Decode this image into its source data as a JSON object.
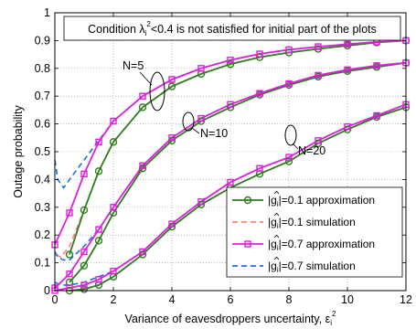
{
  "chart_data": {
    "type": "line",
    "annotation": "Condition λᵢ²<0.4 is not satisfied for initial part of the plots",
    "annotation_parts": {
      "pre": "Condition λ",
      "sub": "i",
      "sup": "2",
      "post": "<0.4 is not satisfied for initial part of the plots"
    },
    "xlabel": "Variance of eavesdroppers uncertainty, εᵢ²",
    "xlabel_parts": {
      "pre": "Variance of eavesdroppers uncertainty, ε",
      "sub": "i",
      "sup": "2"
    },
    "ylabel": "Outage probability",
    "xlim": [
      0,
      12
    ],
    "ylim": [
      0,
      1
    ],
    "xticks": [
      0,
      2,
      4,
      6,
      8,
      10,
      12
    ],
    "yticks": [
      0,
      0.1,
      0.2,
      0.3,
      0.4,
      0.5,
      0.6,
      0.7,
      0.8,
      0.9,
      1
    ],
    "grid": true,
    "legend_position": "bottom-right",
    "group_labels": [
      "N=5",
      "N=10",
      "N=20"
    ],
    "colors": {
      "g01_approx": "#2e7d1f",
      "g01_sim": "#ff8080",
      "g07_approx": "#e01ee0",
      "g07_sim": "#1f6fe0"
    },
    "series": [
      {
        "name": "|ĝᵢ|=0.1 approximation",
        "legend_pre": "|",
        "legend_hat": "g",
        "legend_sub": "i",
        "legend_post": "|=0.1 approximation",
        "group": "N=5",
        "color_key": "g01_approx",
        "style": "solid",
        "marker": "circle",
        "x": [
          0.5,
          1,
          1.5,
          2,
          3,
          4,
          5,
          6,
          7,
          8,
          9,
          10,
          11,
          12
        ],
        "y": [
          0.13,
          0.29,
          0.43,
          0.535,
          0.66,
          0.735,
          0.78,
          0.815,
          0.84,
          0.857,
          0.87,
          0.882,
          0.893,
          0.9
        ]
      },
      {
        "name": "|ĝᵢ|=0.1 simulation",
        "legend_pre": "|",
        "legend_hat": "g",
        "legend_sub": "i",
        "legend_post": "|=0.1 simulation",
        "group": "N=5",
        "color_key": "g01_sim",
        "style": "dashed",
        "marker": "none",
        "x": [
          0.05,
          0.2,
          0.5,
          1,
          1.5,
          2,
          3,
          4,
          5,
          6,
          7,
          8,
          9,
          10,
          11,
          12
        ],
        "y": [
          0.13,
          0.12,
          0.16,
          0.29,
          0.43,
          0.535,
          0.66,
          0.735,
          0.78,
          0.815,
          0.84,
          0.857,
          0.87,
          0.882,
          0.893,
          0.9
        ]
      },
      {
        "name": "|ĝᵢ|=0.7 approximation",
        "legend_pre": "|",
        "legend_hat": "g",
        "legend_sub": "i",
        "legend_post": "|=0.7 approximation",
        "group": "N=5",
        "color_key": "g07_approx",
        "style": "solid",
        "marker": "square",
        "x": [
          0,
          0.5,
          1,
          1.5,
          2,
          3,
          4,
          5,
          6,
          7,
          8,
          9,
          10,
          11,
          12
        ],
        "y": [
          0.165,
          0.28,
          0.42,
          0.535,
          0.61,
          0.7,
          0.76,
          0.8,
          0.83,
          0.852,
          0.867,
          0.878,
          0.887,
          0.895,
          0.9
        ]
      },
      {
        "name": "|ĝᵢ|=0.7 simulation",
        "legend_pre": "|",
        "legend_hat": "g",
        "legend_sub": "i",
        "legend_post": "|=0.7 simulation",
        "group": "N=5",
        "color_key": "g07_sim",
        "style": "dashed",
        "marker": "none",
        "x": [
          0,
          0.1,
          0.3,
          0.5,
          1,
          1.5,
          2,
          3,
          4,
          5,
          6,
          7,
          8,
          9,
          10,
          11,
          12
        ],
        "y": [
          0.47,
          0.4,
          0.37,
          0.4,
          0.47,
          0.54,
          0.61,
          0.7,
          0.76,
          0.8,
          0.83,
          0.852,
          0.867,
          0.878,
          0.887,
          0.895,
          0.9
        ]
      },
      {
        "name": "|ĝᵢ|=0.1 approximation",
        "group": "N=10",
        "color_key": "g01_approx",
        "style": "solid",
        "marker": "circle",
        "legend": false,
        "x": [
          0.5,
          1,
          1.5,
          2,
          3,
          4,
          5,
          6,
          7,
          8,
          9,
          10,
          11,
          12
        ],
        "y": [
          0.03,
          0.09,
          0.18,
          0.28,
          0.44,
          0.54,
          0.61,
          0.66,
          0.705,
          0.74,
          0.77,
          0.79,
          0.805,
          0.82
        ]
      },
      {
        "name": "|ĝᵢ|=0.1 simulation",
        "group": "N=10",
        "color_key": "g01_sim",
        "style": "dashed",
        "marker": "none",
        "legend": false,
        "x": [
          0.5,
          1,
          1.5,
          2,
          3,
          4,
          5,
          6,
          7,
          8,
          9,
          10,
          11,
          12
        ],
        "y": [
          0.03,
          0.09,
          0.18,
          0.28,
          0.44,
          0.54,
          0.61,
          0.66,
          0.705,
          0.74,
          0.77,
          0.79,
          0.805,
          0.82
        ]
      },
      {
        "name": "|ĝᵢ|=0.7 approximation",
        "group": "N=10",
        "color_key": "g07_approx",
        "style": "solid",
        "marker": "square",
        "legend": false,
        "x": [
          0,
          0.5,
          1,
          1.5,
          2,
          3,
          4,
          5,
          6,
          7,
          8,
          9,
          10,
          11,
          12
        ],
        "y": [
          0.01,
          0.06,
          0.14,
          0.22,
          0.3,
          0.45,
          0.55,
          0.62,
          0.67,
          0.71,
          0.745,
          0.775,
          0.795,
          0.81,
          0.82
        ]
      },
      {
        "name": "|ĝᵢ|=0.7 simulation",
        "group": "N=10",
        "color_key": "g07_sim",
        "style": "dashed",
        "marker": "none",
        "legend": false,
        "x": [
          0,
          0.1,
          0.3,
          0.5,
          1,
          1.5,
          2,
          3,
          4,
          5,
          6,
          7,
          8,
          9,
          10,
          11,
          12
        ],
        "y": [
          0.14,
          0.12,
          0.11,
          0.11,
          0.16,
          0.22,
          0.3,
          0.45,
          0.55,
          0.62,
          0.67,
          0.71,
          0.745,
          0.775,
          0.795,
          0.81,
          0.82
        ]
      },
      {
        "name": "|ĝᵢ|=0.1 approximation",
        "group": "N=20",
        "color_key": "g01_approx",
        "style": "solid",
        "marker": "circle",
        "legend": false,
        "x": [
          0.5,
          1,
          1.5,
          2,
          3,
          4,
          5,
          6,
          7,
          8,
          9,
          10,
          11,
          12
        ],
        "y": [
          0.0,
          0.005,
          0.02,
          0.05,
          0.13,
          0.23,
          0.31,
          0.37,
          0.42,
          0.465,
          0.53,
          0.58,
          0.625,
          0.66
        ]
      },
      {
        "name": "|ĝᵢ|=0.1 simulation",
        "group": "N=20",
        "color_key": "g01_sim",
        "style": "dashed",
        "marker": "none",
        "legend": false,
        "x": [
          0.5,
          1,
          1.5,
          2,
          3,
          4,
          5,
          6,
          7,
          8,
          9,
          10,
          11,
          12
        ],
        "y": [
          0.0,
          0.005,
          0.02,
          0.05,
          0.13,
          0.23,
          0.31,
          0.37,
          0.42,
          0.465,
          0.53,
          0.58,
          0.625,
          0.66
        ]
      },
      {
        "name": "|ĝᵢ|=0.7 approximation",
        "group": "N=20",
        "color_key": "g07_approx",
        "style": "solid",
        "marker": "square",
        "legend": false,
        "x": [
          0,
          0.5,
          1,
          1.5,
          2,
          3,
          4,
          5,
          6,
          7,
          8,
          9,
          10,
          11,
          12
        ],
        "y": [
          0.0,
          0.01,
          0.02,
          0.04,
          0.07,
          0.14,
          0.24,
          0.32,
          0.39,
          0.44,
          0.48,
          0.54,
          0.59,
          0.63,
          0.67
        ]
      },
      {
        "name": "|ĝᵢ|=0.7 simulation",
        "group": "N=20",
        "color_key": "g07_sim",
        "style": "dashed",
        "marker": "none",
        "legend": false,
        "x": [
          0,
          0.2,
          0.5,
          1,
          1.5,
          2,
          3,
          4,
          5,
          6,
          7,
          8,
          9,
          10,
          11,
          12
        ],
        "y": [
          0.03,
          0.02,
          0.02,
          0.03,
          0.05,
          0.07,
          0.14,
          0.24,
          0.32,
          0.39,
          0.44,
          0.48,
          0.54,
          0.59,
          0.63,
          0.67
        ]
      }
    ]
  }
}
